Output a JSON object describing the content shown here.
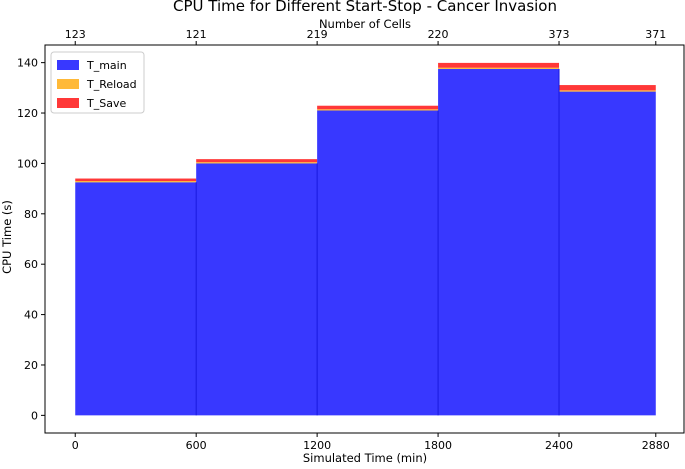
{
  "chart_data": {
    "type": "area",
    "title": "CPU Time for Different Start-Stop - Cancer Invasion",
    "xlabel": "Simulated Time (min)",
    "ylabel": "CPU Time (s)",
    "top_xlabel": "Number of Cells",
    "xlim": [
      -150,
      3020
    ],
    "ylim": [
      -7,
      147
    ],
    "x_ticks": [
      0,
      600,
      1200,
      1800,
      2400,
      2880
    ],
    "x_tick_labels": [
      "0",
      "600",
      "1200",
      "1800",
      "2400",
      "2880"
    ],
    "y_ticks": [
      0,
      20,
      40,
      60,
      80,
      100,
      120,
      140
    ],
    "y_tick_labels": [
      "0",
      "20",
      "40",
      "60",
      "80",
      "100",
      "120",
      "140"
    ],
    "top_ticks": [
      0,
      600,
      1200,
      1800,
      2400,
      2880
    ],
    "top_tick_labels": [
      "123",
      "121",
      "219",
      "220",
      "373",
      "371"
    ],
    "segments": [
      {
        "x_start": 0,
        "x_end": 600
      },
      {
        "x_start": 600,
        "x_end": 1200
      },
      {
        "x_start": 1200,
        "x_end": 1800
      },
      {
        "x_start": 1800,
        "x_end": 2400
      },
      {
        "x_start": 2400,
        "x_end": 2880
      }
    ],
    "series": [
      {
        "name": "T_main",
        "color": "#0000ff",
        "opacity": 0.78,
        "values": [
          92.5,
          100.0,
          121.0,
          137.5,
          128.5
        ]
      },
      {
        "name": "T_Reload",
        "color": "#ffa500",
        "opacity": 0.78,
        "values": [
          0.5,
          0.5,
          0.5,
          0.5,
          0.5
        ]
      },
      {
        "name": "T_Save",
        "color": "#ff0000",
        "opacity": 0.78,
        "values": [
          1.0,
          1.2,
          1.4,
          1.9,
          2.1
        ]
      }
    ],
    "grid": false,
    "legend_position": "top-left"
  }
}
